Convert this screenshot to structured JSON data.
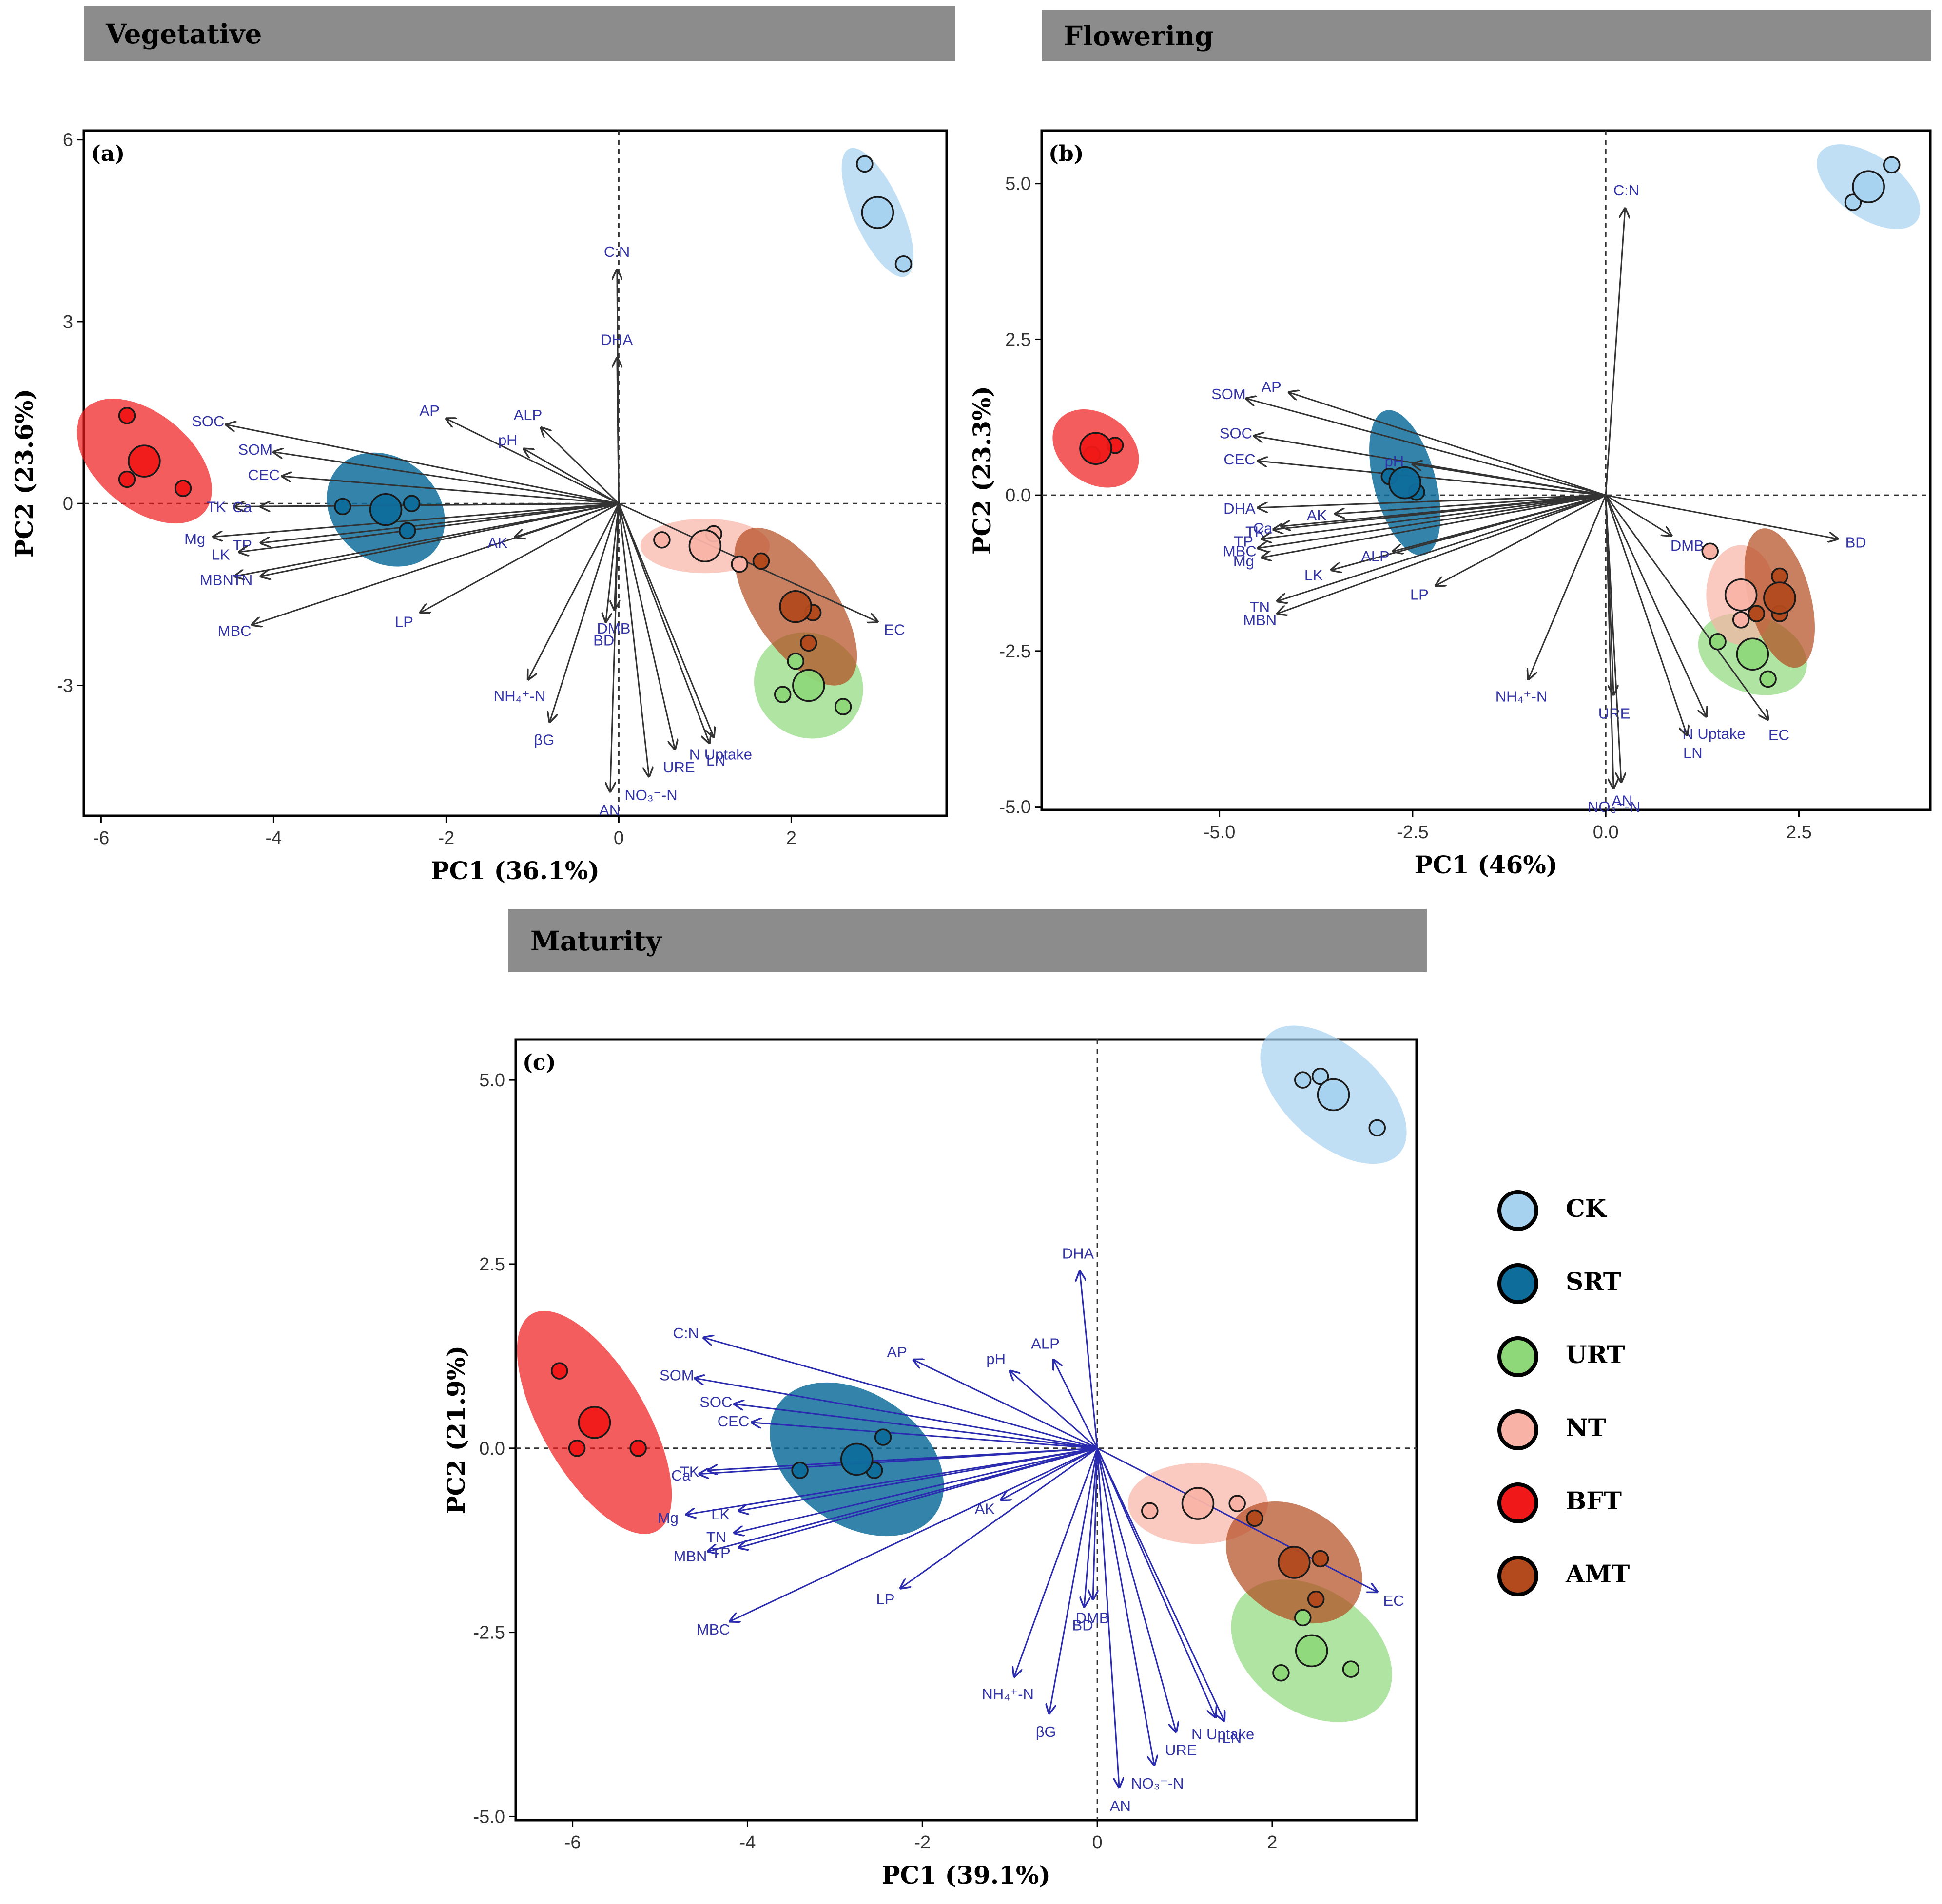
{
  "panels": [
    {
      "banner": "Vegetative",
      "tag": "(a)",
      "xlabel": "PC1 (36.1%)",
      "ylabel": "PC2 (23.6%)"
    },
    {
      "banner": "Flowering",
      "tag": "(b)",
      "xlabel": "PC1 (46%)",
      "ylabel": "PC2 (23.3%)"
    },
    {
      "banner": "Maturity",
      "tag": "(c)",
      "xlabel": "PC1 (39.1%)",
      "ylabel": "PC2 (21.9%)"
    }
  ],
  "legend": [
    {
      "label": "CK",
      "color": "#a6d2ef"
    },
    {
      "label": "SRT",
      "color": "#0f6d9c"
    },
    {
      "label": "URT",
      "color": "#8ed87a"
    },
    {
      "label": "NT",
      "color": "#f8b3a6"
    },
    {
      "label": "BFT",
      "color": "#f01818"
    },
    {
      "label": "AMT",
      "color": "#b24a1e"
    }
  ],
  "colors": {
    "arrow_b": "#333333",
    "arrow_c": "#2b2bb0",
    "var_label": "#3333a8",
    "frame": "#000000"
  },
  "chart_data": [
    {
      "type": "scatter",
      "panel": "(a)",
      "title": "Vegetative",
      "xlabel": "PC1 (36.1%)",
      "ylabel": "PC2 (23.6%)",
      "xlim": [
        -6.2,
        3.8
      ],
      "ylim": [
        -5.15,
        6.15
      ],
      "xticks": [
        -6,
        -4,
        -2,
        0,
        2
      ],
      "yticks": [
        -3,
        0,
        3,
        6
      ],
      "arrow_color": "#333333",
      "groups": [
        {
          "name": "CK",
          "center": [
            3.0,
            4.8
          ],
          "points": [
            [
              2.85,
              5.6
            ],
            [
              3.3,
              3.95
            ]
          ],
          "ellipse": {
            "rx": 0.28,
            "ry": 1.15,
            "angle": 24
          }
        },
        {
          "name": "SRT",
          "center": [
            -2.7,
            -0.1
          ],
          "points": [
            [
              -3.2,
              -0.05
            ],
            [
              -2.4,
              0.0
            ],
            [
              -2.45,
              -0.45
            ]
          ],
          "ellipse": {
            "rx": 0.6,
            "ry": 1.05,
            "angle": 50
          }
        },
        {
          "name": "URT",
          "center": [
            2.2,
            -3.0
          ],
          "points": [
            [
              2.05,
              -2.6
            ],
            [
              1.9,
              -3.15
            ],
            [
              2.6,
              -3.35
            ]
          ],
          "ellipse": {
            "rx": 0.6,
            "ry": 0.92,
            "angle": 55
          }
        },
        {
          "name": "NT",
          "center": [
            1.0,
            -0.7
          ],
          "points": [
            [
              0.5,
              -0.6
            ],
            [
              1.1,
              -0.5
            ],
            [
              1.4,
              -1.0
            ]
          ],
          "ellipse": {
            "rx": 0.75,
            "ry": 0.45,
            "angle": 0
          }
        },
        {
          "name": "BFT",
          "center": [
            -5.5,
            0.7
          ],
          "points": [
            [
              -5.7,
              1.45
            ],
            [
              -5.7,
              0.4
            ],
            [
              -5.05,
              0.25
            ]
          ],
          "ellipse": {
            "rx": 0.55,
            "ry": 1.3,
            "angle": 50
          }
        },
        {
          "name": "AMT",
          "center": [
            2.05,
            -1.7
          ],
          "points": [
            [
              1.65,
              -0.95
            ],
            [
              2.25,
              -1.8
            ],
            [
              2.2,
              -2.3
            ]
          ],
          "ellipse": {
            "rx": 0.48,
            "ry": 1.5,
            "angle": 34
          }
        }
      ],
      "loadings": [
        {
          "label": "C:N",
          "x": -0.02,
          "y": 3.85
        },
        {
          "label": "DHA",
          "x": -0.02,
          "y": 2.4
        },
        {
          "label": "AP",
          "x": -2.0,
          "y": 1.4
        },
        {
          "label": "ALP",
          "x": -0.9,
          "y": 1.25
        },
        {
          "label": "pH",
          "x": -1.1,
          "y": 0.9
        },
        {
          "label": "SOC",
          "x": -4.55,
          "y": 1.3
        },
        {
          "label": "SOM",
          "x": -4.0,
          "y": 0.85
        },
        {
          "label": "CEC",
          "x": -3.9,
          "y": 0.45
        },
        {
          "label": "TK",
          "x": -4.45,
          "y": -0.05
        },
        {
          "label": "Ca",
          "x": -4.15,
          "y": -0.05
        },
        {
          "label": "Mg",
          "x": -4.7,
          "y": -0.55
        },
        {
          "label": "TP",
          "x": -4.15,
          "y": -0.65
        },
        {
          "label": "LK",
          "x": -4.4,
          "y": -0.8
        },
        {
          "label": "MBN",
          "x": -4.45,
          "y": -1.2
        },
        {
          "label": "TN",
          "x": -4.15,
          "y": -1.2
        },
        {
          "label": "MBC",
          "x": -4.25,
          "y": -2.0
        },
        {
          "label": "AK",
          "x": -1.2,
          "y": -0.55
        },
        {
          "label": "LP",
          "x": -2.3,
          "y": -1.8
        },
        {
          "label": "DMB",
          "x": -0.05,
          "y": -1.75
        },
        {
          "label": "BD",
          "x": -0.15,
          "y": -1.95
        },
        {
          "label": "NH₄⁺-N",
          "x": -1.05,
          "y": -2.9
        },
        {
          "label": "βG",
          "x": -0.8,
          "y": -3.6
        },
        {
          "label": "N Uptake",
          "x": 1.1,
          "y": -3.85
        },
        {
          "label": "URE",
          "x": 0.65,
          "y": -4.05
        },
        {
          "label": "LN",
          "x": 1.05,
          "y": -3.95
        },
        {
          "label": "NO₃⁻-N",
          "x": 0.35,
          "y": -4.5
        },
        {
          "label": "AN",
          "x": -0.1,
          "y": -4.75
        },
        {
          "label": "EC",
          "x": 3.0,
          "y": -1.95
        }
      ]
    },
    {
      "type": "scatter",
      "panel": "(b)",
      "title": "Flowering",
      "xlabel": "PC1 (46%)",
      "ylabel": "PC2 (23.3%)",
      "xlim": [
        -7.3,
        4.2
      ],
      "ylim": [
        -5.05,
        5.85
      ],
      "xticks": [
        -5.0,
        -2.5,
        0.0,
        2.5
      ],
      "yticks": [
        -5.0,
        -2.5,
        0.0,
        2.5,
        5.0
      ],
      "arrow_color": "#333333",
      "groups": [
        {
          "name": "CK",
          "center": [
            3.4,
            4.95
          ],
          "points": [
            [
              3.7,
              5.3
            ],
            [
              3.2,
              4.7
            ]
          ],
          "ellipse": {
            "rx": 0.4,
            "ry": 0.95,
            "angle": 55
          }
        },
        {
          "name": "SRT",
          "center": [
            -2.6,
            0.2
          ],
          "points": [
            [
              -2.8,
              0.3
            ],
            [
              -2.45,
              0.05
            ]
          ],
          "ellipse": {
            "rx": 0.4,
            "ry": 1.2,
            "angle": 15
          }
        },
        {
          "name": "URT",
          "center": [
            1.9,
            -2.55
          ],
          "points": [
            [
              1.45,
              -2.35
            ],
            [
              2.1,
              -2.95
            ]
          ],
          "ellipse": {
            "rx": 0.5,
            "ry": 0.9,
            "angle": 70
          }
        },
        {
          "name": "NT",
          "center": [
            1.75,
            -1.6
          ],
          "points": [
            [
              1.35,
              -0.9
            ],
            [
              1.75,
              -2.0
            ]
          ],
          "ellipse": {
            "rx": 0.45,
            "ry": 0.8,
            "angle": 0
          }
        },
        {
          "name": "BFT",
          "center": [
            -6.6,
            0.75
          ],
          "points": [
            [
              -6.35,
              0.8
            ],
            [
              -6.65,
              0.65
            ]
          ],
          "ellipse": {
            "rx": 0.45,
            "ry": 0.75,
            "angle": 55
          }
        },
        {
          "name": "AMT",
          "center": [
            2.25,
            -1.65
          ],
          "points": [
            [
              2.25,
              -1.3
            ],
            [
              1.95,
              -1.9
            ],
            [
              2.25,
              -1.9
            ]
          ],
          "ellipse": {
            "rx": 0.4,
            "ry": 1.15,
            "angle": 15
          }
        }
      ],
      "loadings": [
        {
          "label": "C:N",
          "x": 0.25,
          "y": 4.6
        },
        {
          "label": "SOM",
          "x": -4.65,
          "y": 1.55
        },
        {
          "label": "AP",
          "x": -4.1,
          "y": 1.65
        },
        {
          "label": "SOC",
          "x": -4.55,
          "y": 0.95
        },
        {
          "label": "CEC",
          "x": -4.5,
          "y": 0.55
        },
        {
          "label": "pH",
          "x": -2.5,
          "y": 0.5
        },
        {
          "label": "DHA",
          "x": -4.5,
          "y": -0.2
        },
        {
          "label": "TK",
          "x": -4.3,
          "y": -0.55
        },
        {
          "label": "AK",
          "x": -3.5,
          "y": -0.3
        },
        {
          "label": "MBC",
          "x": -4.5,
          "y": -0.85
        },
        {
          "label": "TP",
          "x": -4.45,
          "y": -0.7
        },
        {
          "label": "Ca",
          "x": -4.2,
          "y": -0.5
        },
        {
          "label": "Mg",
          "x": -4.45,
          "y": -1.0
        },
        {
          "label": "LK",
          "x": -3.55,
          "y": -1.2
        },
        {
          "label": "ALP",
          "x": -2.75,
          "y": -0.9
        },
        {
          "label": "TN",
          "x": -4.25,
          "y": -1.7
        },
        {
          "label": "LP",
          "x": -2.2,
          "y": -1.45
        },
        {
          "label": "MBN",
          "x": -4.25,
          "y": -1.9
        },
        {
          "label": "DMB",
          "x": 0.85,
          "y": -0.65
        },
        {
          "label": "BD",
          "x": 3.0,
          "y": -0.7
        },
        {
          "label": "NH₄⁺-N",
          "x": -1.0,
          "y": -2.95
        },
        {
          "label": "URE",
          "x": 0.1,
          "y": -3.2
        },
        {
          "label": "N Uptake",
          "x": 1.3,
          "y": -3.55
        },
        {
          "label": "EC",
          "x": 2.1,
          "y": -3.6
        },
        {
          "label": "LN",
          "x": 1.05,
          "y": -3.85
        },
        {
          "label": "AN",
          "x": 0.2,
          "y": -4.6
        },
        {
          "label": "NO₃⁻-N",
          "x": 0.1,
          "y": -4.7
        }
      ]
    },
    {
      "type": "scatter",
      "panel": "(c)",
      "title": "Maturity",
      "xlabel": "PC1 (39.1%)",
      "ylabel": "PC2 (21.9%)",
      "xlim": [
        -6.65,
        3.65
      ],
      "ylim": [
        -5.05,
        5.55
      ],
      "xticks": [
        -6,
        -4,
        -2,
        0,
        2
      ],
      "yticks": [
        -5.0,
        -2.5,
        0.0,
        2.5,
        5.0
      ],
      "arrow_color": "#2b2bb0",
      "groups": [
        {
          "name": "CK",
          "center": [
            2.7,
            4.8
          ],
          "points": [
            [
              2.35,
              5.0
            ],
            [
              2.55,
              5.05
            ],
            [
              3.2,
              4.35
            ]
          ],
          "ellipse": {
            "rx": 0.55,
            "ry": 1.2,
            "angle": 48
          }
        },
        {
          "name": "SRT",
          "center": [
            -2.75,
            -0.15
          ],
          "points": [
            [
              -3.4,
              -0.3
            ],
            [
              -2.45,
              0.15
            ],
            [
              -2.55,
              -0.3
            ]
          ],
          "ellipse": {
            "rx": 0.75,
            "ry": 1.3,
            "angle": 55
          }
        },
        {
          "name": "URT",
          "center": [
            2.45,
            -2.75
          ],
          "points": [
            [
              2.35,
              -2.3
            ],
            [
              2.1,
              -3.05
            ],
            [
              2.9,
              -3.0
            ]
          ],
          "ellipse": {
            "rx": 0.7,
            "ry": 1.2,
            "angle": 55
          }
        },
        {
          "name": "NT",
          "center": [
            1.15,
            -0.75
          ],
          "points": [
            [
              0.6,
              -0.85
            ],
            [
              1.6,
              -0.75
            ]
          ],
          "ellipse": {
            "rx": 0.8,
            "ry": 0.55,
            "angle": 0
          }
        },
        {
          "name": "BFT",
          "center": [
            -5.75,
            0.35
          ],
          "points": [
            [
              -6.15,
              1.05
            ],
            [
              -5.95,
              0.0
            ],
            [
              -5.25,
              0.0
            ]
          ],
          "ellipse": {
            "rx": 0.6,
            "ry": 1.7,
            "angle": 30
          }
        },
        {
          "name": "AMT",
          "center": [
            2.25,
            -1.55
          ],
          "points": [
            [
              1.8,
              -0.95
            ],
            [
              2.55,
              -1.5
            ],
            [
              2.5,
              -2.05
            ]
          ],
          "ellipse": {
            "rx": 0.62,
            "ry": 1.0,
            "angle": 56
          }
        }
      ],
      "loadings": [
        {
          "label": "DHA",
          "x": -0.2,
          "y": 2.4
        },
        {
          "label": "C:N",
          "x": -4.5,
          "y": 1.5
        },
        {
          "label": "AP",
          "x": -2.1,
          "y": 1.2
        },
        {
          "label": "ALP",
          "x": -0.5,
          "y": 1.2
        },
        {
          "label": "SOM",
          "x": -4.6,
          "y": 0.95
        },
        {
          "label": "pH",
          "x": -1.0,
          "y": 1.05
        },
        {
          "label": "SOC",
          "x": -4.15,
          "y": 0.6
        },
        {
          "label": "CEC",
          "x": -3.95,
          "y": 0.35
        },
        {
          "label": "Ca",
          "x": -4.55,
          "y": -0.35
        },
        {
          "label": "TK",
          "x": -4.45,
          "y": -0.3
        },
        {
          "label": "LK",
          "x": -4.1,
          "y": -0.85
        },
        {
          "label": "Mg",
          "x": -4.7,
          "y": -0.9
        },
        {
          "label": "MBN",
          "x": -4.45,
          "y": -1.4
        },
        {
          "label": "TP",
          "x": -4.1,
          "y": -1.35
        },
        {
          "label": "TN",
          "x": -4.15,
          "y": -1.15
        },
        {
          "label": "AK",
          "x": -1.1,
          "y": -0.7
        },
        {
          "label": "MBC",
          "x": -4.2,
          "y": -2.35
        },
        {
          "label": "LP",
          "x": -2.25,
          "y": -1.9
        },
        {
          "label": "DMB",
          "x": -0.05,
          "y": -2.05
        },
        {
          "label": "BD",
          "x": -0.15,
          "y": -2.15
        },
        {
          "label": "EC",
          "x": 3.2,
          "y": -1.95
        },
        {
          "label": "NH₄⁺-N",
          "x": -0.95,
          "y": -3.1
        },
        {
          "label": "βG",
          "x": -0.55,
          "y": -3.6
        },
        {
          "label": "N Uptake",
          "x": 1.35,
          "y": -3.65
        },
        {
          "label": "URE",
          "x": 0.9,
          "y": -3.85
        },
        {
          "label": "LN",
          "x": 1.45,
          "y": -3.7
        },
        {
          "label": "NO₃⁻-N",
          "x": 0.65,
          "y": -4.3
        },
        {
          "label": "AN",
          "x": 0.25,
          "y": -4.6
        }
      ]
    }
  ]
}
